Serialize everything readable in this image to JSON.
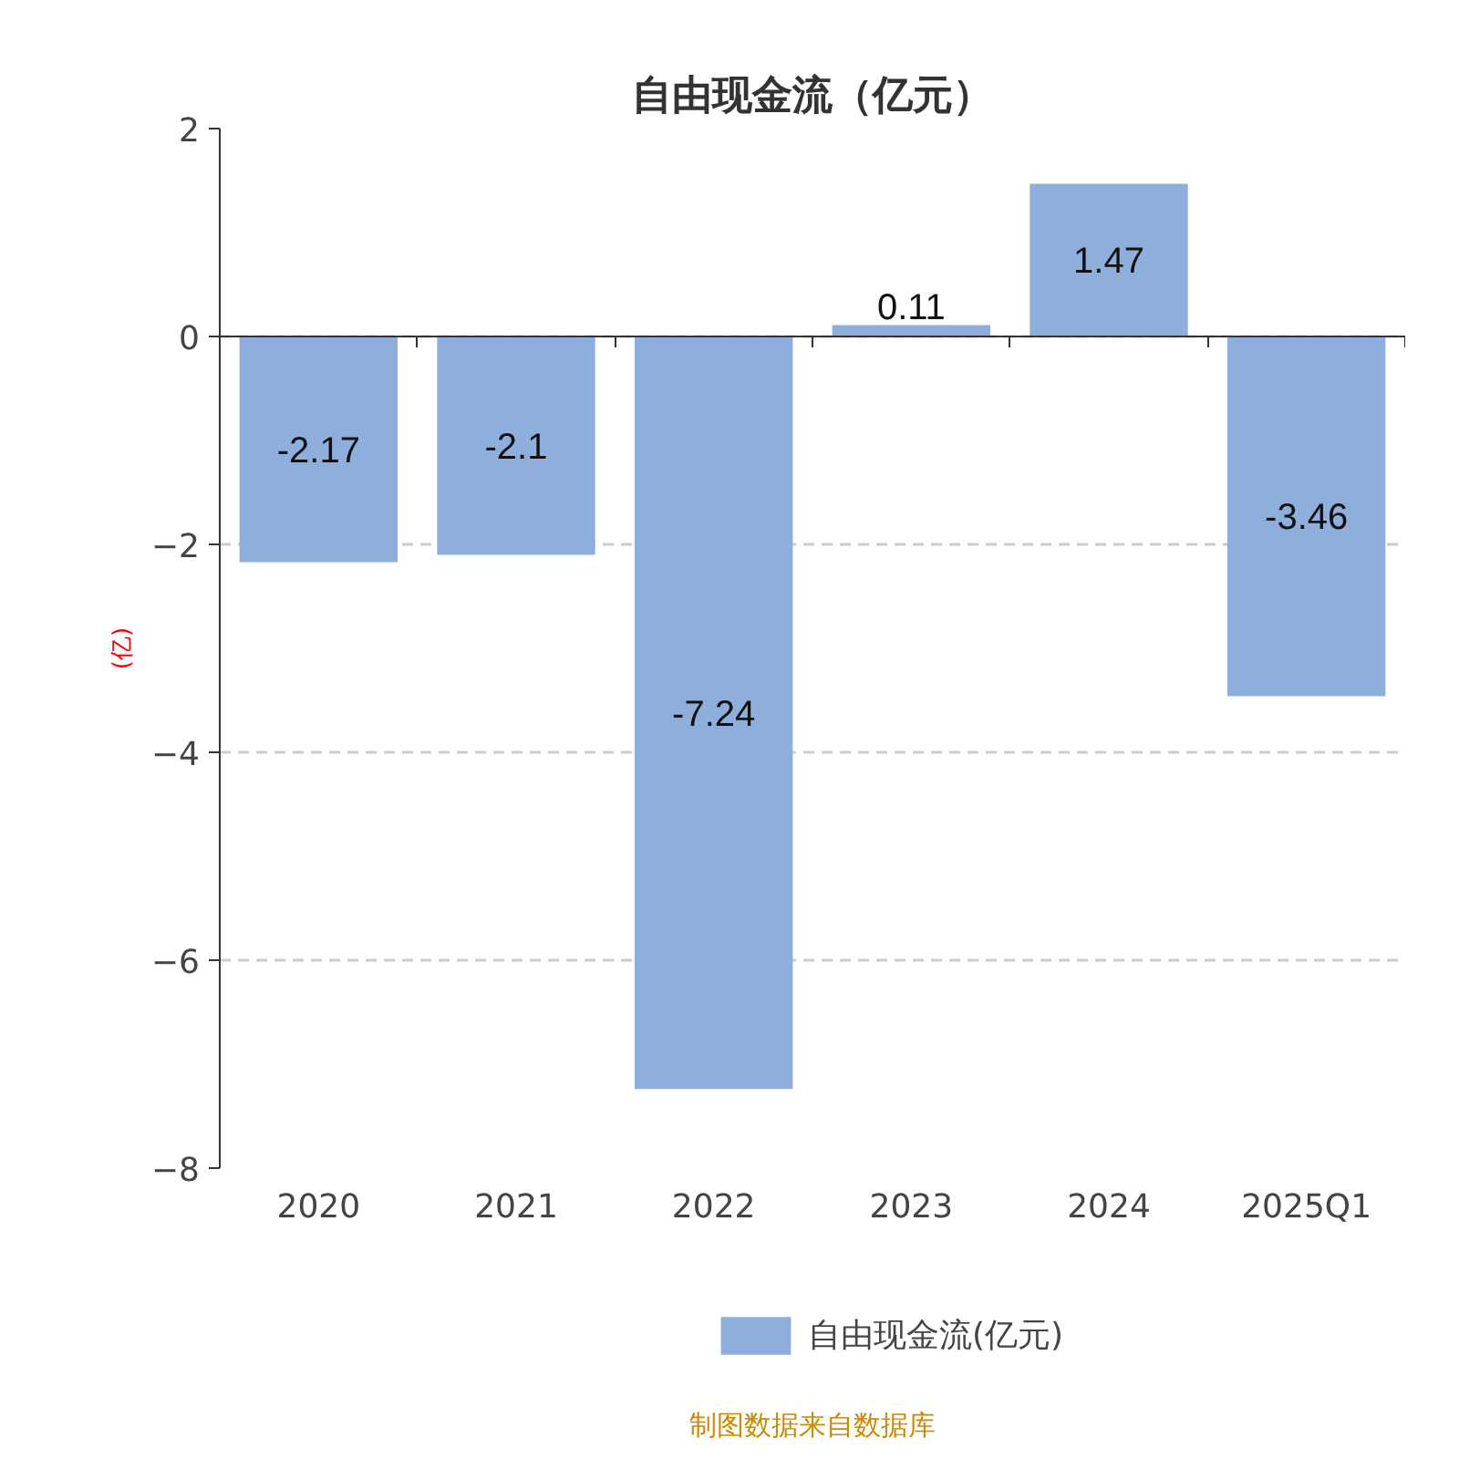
{
  "chart_data": {
    "type": "bar",
    "title": "自由现金流（亿元）",
    "ylabel": "(亿)",
    "categories": [
      "2020",
      "2021",
      "2022",
      "2023",
      "2024",
      "2025Q1"
    ],
    "series": [
      {
        "name": "自由现金流(亿元)",
        "color": "#8eaedb",
        "values": [
          -2.17,
          -2.1,
          -7.24,
          0.11,
          1.47,
          -3.46
        ]
      }
    ],
    "ylim": [
      -8,
      2
    ],
    "yticks": [
      -8,
      -6,
      -4,
      -2,
      0,
      2
    ],
    "grid": "y",
    "legend": "bottom",
    "data_labels": true,
    "annotations": [
      "制图数据来自数据库"
    ]
  }
}
